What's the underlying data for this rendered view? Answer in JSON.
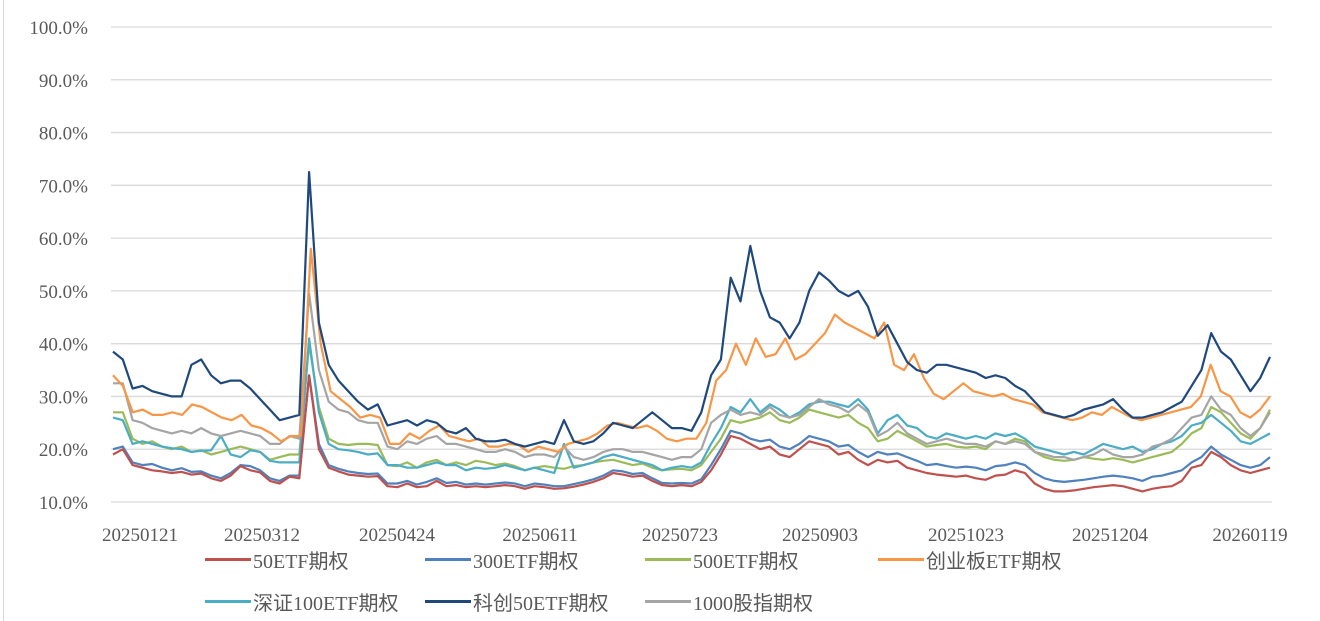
{
  "chart_data": {
    "type": "line",
    "title": "",
    "xlabel": "",
    "ylabel": "",
    "ylim": [
      0.1,
      1.0
    ],
    "y_ticks": [
      "10.0%",
      "20.0%",
      "30.0%",
      "40.0%",
      "50.0%",
      "60.0%",
      "70.0%",
      "80.0%",
      "90.0%",
      "100.0%"
    ],
    "x_tick_labels": [
      "20250121",
      "20250312",
      "20250424",
      "20250611",
      "20250723",
      "20250903",
      "20251023",
      "20251204",
      "20260119"
    ],
    "grid": true,
    "legend_position": "bottom",
    "series": [
      {
        "name": "50ETF期权",
        "color": "#c0504d",
        "values": [
          19.0,
          20.0,
          17.0,
          16.5,
          16.0,
          15.8,
          15.5,
          15.7,
          15.2,
          15.4,
          14.5,
          14.0,
          15.0,
          16.8,
          16.0,
          15.6,
          14.0,
          13.5,
          14.8,
          14.5,
          34.0,
          20.0,
          16.5,
          15.8,
          15.2,
          15.0,
          14.8,
          14.9,
          13.0,
          12.8,
          13.5,
          12.8,
          13.0,
          14.0,
          13.0,
          13.2,
          12.8,
          13.0,
          12.8,
          13.0,
          13.2,
          13.0,
          12.5,
          13.0,
          12.8,
          12.5,
          12.6,
          12.9,
          13.3,
          13.8,
          14.5,
          15.5,
          15.2,
          14.8,
          15.0,
          14.0,
          13.2,
          13.0,
          13.2,
          13.0,
          13.8,
          16.0,
          19.0,
          22.5,
          22.0,
          21.0,
          20.0,
          20.5,
          19.0,
          18.5,
          20.0,
          21.5,
          21.0,
          20.5,
          19.0,
          19.5,
          18.0,
          17.0,
          18.0,
          17.5,
          17.8,
          16.5,
          16.0,
          15.5,
          15.2,
          15.0,
          14.8,
          15.0,
          14.5,
          14.2,
          15.0,
          15.2,
          16.0,
          15.5,
          13.5,
          12.5,
          12.0,
          12.0,
          12.2,
          12.5,
          12.8,
          13.0,
          13.2,
          13.0,
          12.5,
          12.0,
          12.5,
          12.8,
          13.0,
          14.0,
          16.5,
          17.0,
          19.5,
          18.5,
          17.0,
          16.0,
          15.5,
          16.0,
          16.5
        ]
      },
      {
        "name": "300ETF期权",
        "color": "#4f81bd",
        "values": [
          20.0,
          20.5,
          17.5,
          17.0,
          17.2,
          16.5,
          16.0,
          16.4,
          15.7,
          15.8,
          15.0,
          14.5,
          15.5,
          17.0,
          16.8,
          16.0,
          14.5,
          14.0,
          15.0,
          15.0,
          34.0,
          21.0,
          17.0,
          16.3,
          15.8,
          15.5,
          15.3,
          15.4,
          13.5,
          13.5,
          14.0,
          13.3,
          13.8,
          14.5,
          13.6,
          13.8,
          13.3,
          13.5,
          13.3,
          13.5,
          13.7,
          13.5,
          13.0,
          13.5,
          13.3,
          13.0,
          13.0,
          13.4,
          13.8,
          14.3,
          15.0,
          16.0,
          15.8,
          15.3,
          15.5,
          14.5,
          13.6,
          13.5,
          13.6,
          13.5,
          14.3,
          17.0,
          20.0,
          23.5,
          23.0,
          22.0,
          21.5,
          21.8,
          20.5,
          20.0,
          21.0,
          22.5,
          22.0,
          21.5,
          20.5,
          20.8,
          19.5,
          18.5,
          19.5,
          19.0,
          19.2,
          18.5,
          17.8,
          17.0,
          17.2,
          16.8,
          16.5,
          16.7,
          16.5,
          16.0,
          16.8,
          17.0,
          17.5,
          17.0,
          15.5,
          14.5,
          14.0,
          13.8,
          14.0,
          14.2,
          14.5,
          14.8,
          15.0,
          14.8,
          14.5,
          14.0,
          14.8,
          15.0,
          15.5,
          16.0,
          17.5,
          18.5,
          20.5,
          19.0,
          18.0,
          17.0,
          16.5,
          17.0,
          18.5
        ]
      },
      {
        "name": "500ETF期权",
        "color": "#9bbb59",
        "values": [
          27.0,
          27.0,
          22.0,
          21.0,
          21.5,
          20.5,
          20.0,
          20.5,
          19.5,
          19.8,
          19.0,
          19.5,
          20.0,
          20.5,
          20.0,
          19.5,
          18.0,
          18.5,
          19.0,
          19.0,
          40.0,
          28.0,
          22.0,
          21.0,
          20.8,
          21.0,
          21.0,
          20.8,
          17.0,
          16.8,
          17.5,
          16.5,
          17.5,
          18.0,
          17.0,
          17.5,
          17.0,
          17.8,
          17.5,
          17.0,
          17.3,
          16.8,
          16.0,
          16.5,
          16.8,
          16.5,
          16.3,
          16.8,
          17.0,
          17.5,
          17.8,
          18.0,
          17.5,
          17.0,
          17.3,
          16.5,
          16.0,
          16.2,
          16.3,
          16.0,
          17.0,
          19.5,
          22.0,
          25.5,
          25.0,
          25.5,
          26.0,
          27.0,
          25.5,
          25.0,
          26.0,
          27.5,
          27.0,
          26.5,
          26.0,
          26.5,
          25.0,
          24.0,
          21.5,
          22.0,
          23.5,
          22.5,
          21.5,
          20.5,
          20.8,
          21.0,
          20.5,
          20.3,
          20.5,
          20.0,
          21.5,
          21.0,
          22.0,
          21.5,
          19.5,
          18.5,
          18.0,
          17.8,
          18.0,
          18.5,
          18.2,
          18.0,
          18.3,
          18.0,
          17.5,
          18.0,
          18.5,
          19.0,
          19.5,
          21.0,
          23.0,
          24.0,
          28.0,
          27.0,
          25.0,
          23.0,
          22.0,
          24.0,
          27.5
        ]
      },
      {
        "name": "创业板ETF期权",
        "color": "#f79646",
        "values": [
          34.0,
          32.0,
          27.0,
          27.5,
          26.5,
          26.5,
          27.0,
          26.5,
          28.5,
          28.0,
          27.0,
          26.0,
          25.5,
          26.5,
          24.5,
          24.0,
          23.0,
          21.5,
          22.5,
          22.5,
          58.0,
          40.0,
          31.0,
          29.5,
          28.0,
          26.0,
          26.5,
          26.0,
          21.0,
          21.0,
          23.0,
          22.0,
          23.5,
          24.5,
          22.5,
          22.0,
          21.5,
          22.0,
          20.5,
          20.5,
          21.0,
          20.8,
          19.5,
          20.5,
          20.0,
          19.5,
          21.0,
          21.5,
          22.0,
          23.0,
          24.5,
          25.0,
          24.5,
          24.0,
          24.5,
          23.5,
          22.0,
          21.5,
          22.0,
          22.0,
          25.0,
          33.0,
          35.0,
          40.0,
          36.0,
          41.0,
          37.5,
          38.0,
          41.0,
          37.0,
          38.0,
          40.0,
          42.0,
          45.5,
          44.0,
          43.0,
          42.0,
          41.0,
          44.0,
          36.0,
          35.0,
          38.0,
          33.5,
          30.5,
          29.5,
          31.0,
          32.5,
          31.0,
          30.5,
          30.0,
          30.5,
          29.5,
          29.0,
          28.5,
          27.0,
          26.5,
          26.0,
          25.5,
          26.0,
          27.0,
          26.5,
          28.0,
          27.0,
          26.0,
          25.5,
          26.0,
          26.5,
          27.0,
          27.5,
          28.0,
          30.0,
          36.0,
          31.0,
          30.0,
          27.0,
          26.0,
          27.5,
          30.0
        ]
      },
      {
        "name": "深证100ETF期权",
        "color": "#4bacc6",
        "values": [
          26.0,
          25.5,
          21.0,
          21.5,
          21.0,
          20.5,
          20.2,
          20.0,
          19.5,
          19.7,
          19.8,
          22.5,
          19.0,
          18.5,
          19.8,
          19.5,
          17.8,
          17.5,
          17.5,
          17.5,
          41.0,
          27.0,
          21.0,
          20.0,
          19.8,
          19.5,
          19.0,
          19.2,
          17.0,
          17.0,
          16.5,
          16.5,
          17.0,
          17.5,
          17.0,
          17.0,
          16.0,
          16.5,
          16.3,
          16.5,
          17.0,
          16.5,
          16.0,
          16.5,
          16.0,
          15.5,
          21.0,
          16.5,
          17.0,
          17.5,
          18.5,
          19.0,
          18.5,
          18.0,
          17.5,
          17.0,
          16.0,
          16.5,
          16.8,
          16.5,
          17.5,
          21.0,
          24.0,
          28.0,
          27.0,
          29.5,
          27.0,
          28.5,
          27.5,
          26.0,
          27.0,
          28.5,
          29.0,
          29.0,
          28.5,
          28.0,
          29.5,
          27.5,
          23.0,
          25.5,
          26.5,
          24.5,
          24.0,
          22.5,
          22.0,
          23.0,
          22.5,
          22.0,
          22.5,
          22.0,
          23.0,
          22.5,
          23.0,
          22.0,
          20.5,
          20.0,
          19.5,
          19.0,
          19.5,
          19.0,
          20.0,
          21.0,
          20.5,
          20.0,
          20.5,
          19.5,
          20.0,
          21.0,
          21.5,
          22.5,
          24.5,
          25.0,
          26.5,
          25.0,
          23.5,
          21.5,
          21.0,
          22.0,
          23.0
        ]
      },
      {
        "name": "科创50ETF期权",
        "color": "#1f497d",
        "values": [
          38.5,
          37.0,
          31.5,
          32.0,
          31.0,
          30.5,
          30.0,
          30.0,
          36.0,
          37.0,
          34.0,
          32.5,
          33.0,
          33.0,
          31.5,
          29.5,
          27.5,
          25.5,
          26.0,
          26.5,
          72.5,
          44.0,
          36.0,
          33.0,
          31.0,
          29.0,
          27.5,
          28.5,
          24.5,
          25.0,
          25.5,
          24.5,
          25.5,
          25.0,
          23.5,
          23.0,
          24.0,
          22.0,
          21.5,
          21.5,
          21.8,
          21.0,
          20.5,
          21.0,
          21.5,
          21.0,
          25.5,
          21.5,
          21.0,
          21.5,
          23.0,
          25.0,
          24.5,
          24.0,
          25.5,
          27.0,
          25.5,
          24.0,
          24.0,
          23.5,
          27.0,
          34.0,
          37.0,
          52.5,
          48.0,
          58.5,
          50.0,
          45.0,
          44.0,
          41.0,
          44.0,
          50.0,
          53.5,
          52.0,
          50.0,
          49.0,
          50.0,
          47.0,
          41.5,
          43.5,
          40.0,
          36.5,
          35.0,
          34.5,
          36.0,
          36.0,
          35.5,
          35.0,
          34.5,
          33.5,
          34.0,
          33.5,
          32.0,
          31.0,
          29.0,
          27.0,
          26.5,
          26.0,
          26.5,
          27.5,
          28.0,
          28.5,
          29.5,
          27.5,
          26.0,
          26.0,
          26.5,
          27.0,
          28.0,
          29.0,
          32.0,
          35.0,
          42.0,
          38.5,
          37.0,
          34.0,
          31.0,
          33.5,
          37.5
        ]
      },
      {
        "name": "1000股指期权",
        "color": "#a5a5a5",
        "values": [
          32.5,
          32.5,
          25.5,
          25.0,
          24.0,
          23.5,
          23.0,
          23.5,
          23.0,
          24.0,
          23.0,
          22.5,
          23.0,
          23.5,
          23.0,
          22.5,
          21.0,
          21.0,
          22.5,
          22.0,
          49.5,
          35.0,
          29.0,
          27.5,
          27.0,
          25.5,
          25.0,
          25.0,
          20.5,
          20.0,
          21.5,
          21.0,
          22.0,
          22.5,
          21.0,
          21.0,
          20.5,
          20.0,
          19.5,
          19.5,
          20.0,
          19.5,
          18.5,
          19.0,
          19.0,
          18.5,
          20.5,
          18.5,
          18.0,
          18.5,
          19.5,
          20.0,
          20.0,
          19.5,
          19.5,
          19.0,
          18.5,
          18.0,
          18.5,
          18.5,
          20.0,
          25.0,
          26.5,
          27.5,
          26.5,
          27.0,
          26.5,
          28.0,
          26.5,
          26.0,
          26.5,
          28.0,
          29.5,
          28.5,
          28.0,
          27.0,
          28.5,
          27.0,
          22.5,
          23.5,
          25.0,
          23.0,
          22.0,
          21.0,
          21.5,
          22.0,
          21.5,
          21.0,
          21.0,
          20.5,
          21.5,
          21.0,
          21.5,
          21.0,
          19.5,
          19.0,
          18.5,
          18.5,
          18.0,
          18.5,
          19.0,
          20.0,
          19.0,
          18.5,
          18.5,
          19.0,
          20.5,
          21.0,
          22.0,
          24.0,
          26.0,
          26.5,
          30.0,
          27.5,
          26.5,
          24.0,
          22.5,
          24.0,
          27.0
        ]
      }
    ]
  },
  "legend": {
    "row1": [
      "50ETF期权",
      "300ETF期权",
      "500ETF期权",
      "创业板ETF期权"
    ],
    "row2": [
      "深证100ETF期权",
      "科创50ETF期权",
      "1000股指期权"
    ]
  }
}
